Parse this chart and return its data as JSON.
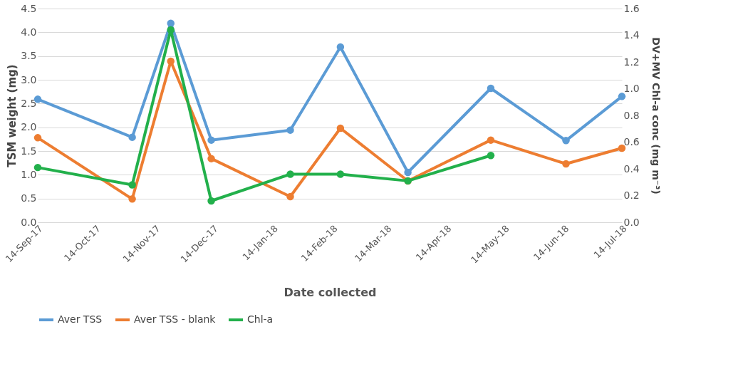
{
  "chart_data": {
    "type": "line",
    "xlabel": "Date collected",
    "ylabel": "TSM weight (mg)",
    "y2label": "DV+MV Chl-a conc (mg m⁻³)",
    "x": [
      "2017-09-14",
      "2017-11-02",
      "2017-11-22",
      "2017-12-13",
      "2018-01-23",
      "2018-02-18",
      "2018-03-25",
      "2018-05-07",
      "2018-06-15",
      "2018-07-14"
    ],
    "series": [
      {
        "name": "Aver TSS",
        "color": "#5b9bd5",
        "values": [
          2.59,
          1.79,
          4.19,
          1.73,
          1.94,
          3.69,
          1.05,
          2.82,
          1.72,
          2.65
        ]
      },
      {
        "name": "Aver TSS - blank",
        "color": "#ed7d31",
        "values": [
          1.78,
          0.49,
          3.39,
          1.34,
          0.54,
          1.98,
          0.87,
          1.73,
          1.23,
          1.56
        ]
      },
      {
        "name": "Chl-a",
        "color": "#22b04b",
        "axis": "y2",
        "values": [
          0.41,
          0.28,
          1.44,
          0.16,
          0.36,
          0.36,
          0.31,
          0.5,
          null,
          null
        ]
      }
    ],
    "xlim": [
      "2017-09-14",
      "2018-07-14"
    ],
    "xticks": [
      {
        "value": "2017-09-14",
        "label": "14-Sep-17"
      },
      {
        "value": "2017-10-14",
        "label": "14-Oct-17"
      },
      {
        "value": "2017-11-14",
        "label": "14-Nov-17"
      },
      {
        "value": "2017-12-14",
        "label": "14-Dec-17"
      },
      {
        "value": "2018-01-14",
        "label": "14-Jan-18"
      },
      {
        "value": "2018-02-14",
        "label": "14-Feb-18"
      },
      {
        "value": "2018-03-14",
        "label": "14-Mar-18"
      },
      {
        "value": "2018-04-14",
        "label": "14-Apr-18"
      },
      {
        "value": "2018-05-14",
        "label": "14-May-18"
      },
      {
        "value": "2018-06-14",
        "label": "14-Jun-18"
      },
      {
        "value": "2018-07-14",
        "label": "14-Jul-18"
      }
    ],
    "ylim": [
      0,
      4.5
    ],
    "yticks": [
      {
        "value": 0,
        "label": "0.0"
      },
      0.5,
      {
        "value": 1,
        "label": "1.0"
      },
      1.5,
      {
        "value": 2,
        "label": "2.0"
      },
      2.5,
      {
        "value": 3,
        "label": "3.0"
      },
      3.5,
      {
        "value": 4,
        "label": "4.0"
      },
      4.5
    ],
    "y2lim": [
      0,
      1.6
    ],
    "y2ticks": [
      {
        "value": 0,
        "label": "0.0"
      },
      0.2,
      0.4,
      0.6,
      0.8,
      {
        "value": 1,
        "label": "1.0"
      },
      1.2,
      1.4,
      1.6
    ],
    "grid": "y",
    "legend": "bottom",
    "marker": "circle",
    "line_style": "solid"
  }
}
